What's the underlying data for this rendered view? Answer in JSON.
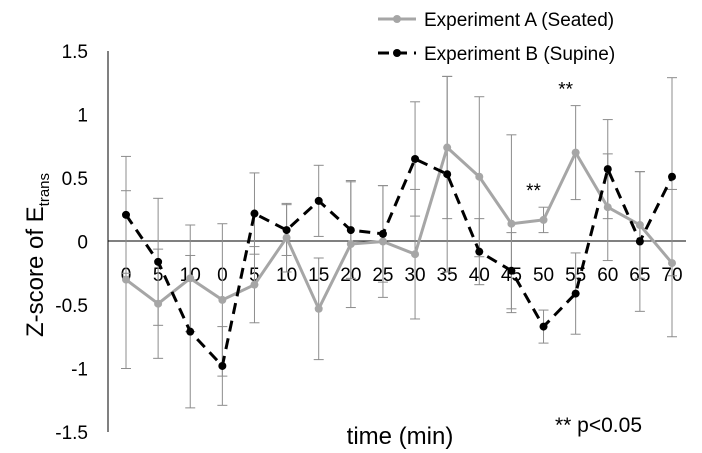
{
  "chart_data": {
    "type": "line",
    "x_tick_labels": [
      "0",
      "5",
      "10",
      "0",
      "5",
      "10",
      "15",
      "20",
      "25",
      "30",
      "35",
      "40",
      "45",
      "50",
      "55",
      "60",
      "65",
      "70"
    ],
    "xlabel": "time (min)",
    "ylabel_main": "Z-score of E",
    "ylabel_sub": "trans",
    "ylim": [
      -1.5,
      1.5
    ],
    "y_ticks": [
      "1.5",
      "1",
      "0.5",
      "0",
      "-0.5",
      "-1",
      "-1.5"
    ],
    "legend_position": "top-right",
    "grid": false,
    "series": [
      {
        "name": "Experiment A (Seated)",
        "color": "#a6a6a6",
        "line_style": "solid",
        "values": [
          -0.3,
          -0.49,
          -0.29,
          -0.46,
          -0.34,
          0.03,
          -0.53,
          -0.02,
          0.0,
          -0.1,
          0.74,
          0.51,
          0.14,
          0.17,
          0.7,
          0.27,
          0.13,
          -0.17
        ],
        "error": [
          0.7,
          0.43,
          0.42,
          0.6,
          0.3,
          0.27,
          0.4,
          0.5,
          0.44,
          0.51,
          0.56,
          0.63,
          0.7,
          0.1,
          0.37,
          0.42,
          0.42,
          0.58
        ]
      },
      {
        "name": "Experiment B (Supine)",
        "color": "#000000",
        "line_style": "dashed",
        "values": [
          0.21,
          -0.16,
          -0.71,
          -0.98,
          0.22,
          0.09,
          0.32,
          0.09,
          0.06,
          0.65,
          0.53,
          -0.08,
          -0.23,
          -0.67,
          -0.41,
          0.57,
          0.0,
          0.51
        ],
        "error": [
          0.46,
          0.5,
          0.6,
          0.31,
          0.32,
          0.2,
          0.28,
          0.38,
          0.38,
          0.45,
          0.77,
          0.26,
          0.3,
          0.13,
          0.32,
          0.39,
          0.55,
          0.78
        ]
      }
    ],
    "significance_marks": [
      {
        "index": 13,
        "label": "**"
      },
      {
        "index": 14,
        "label": "**"
      }
    ],
    "annotation": "** p<0.05"
  }
}
